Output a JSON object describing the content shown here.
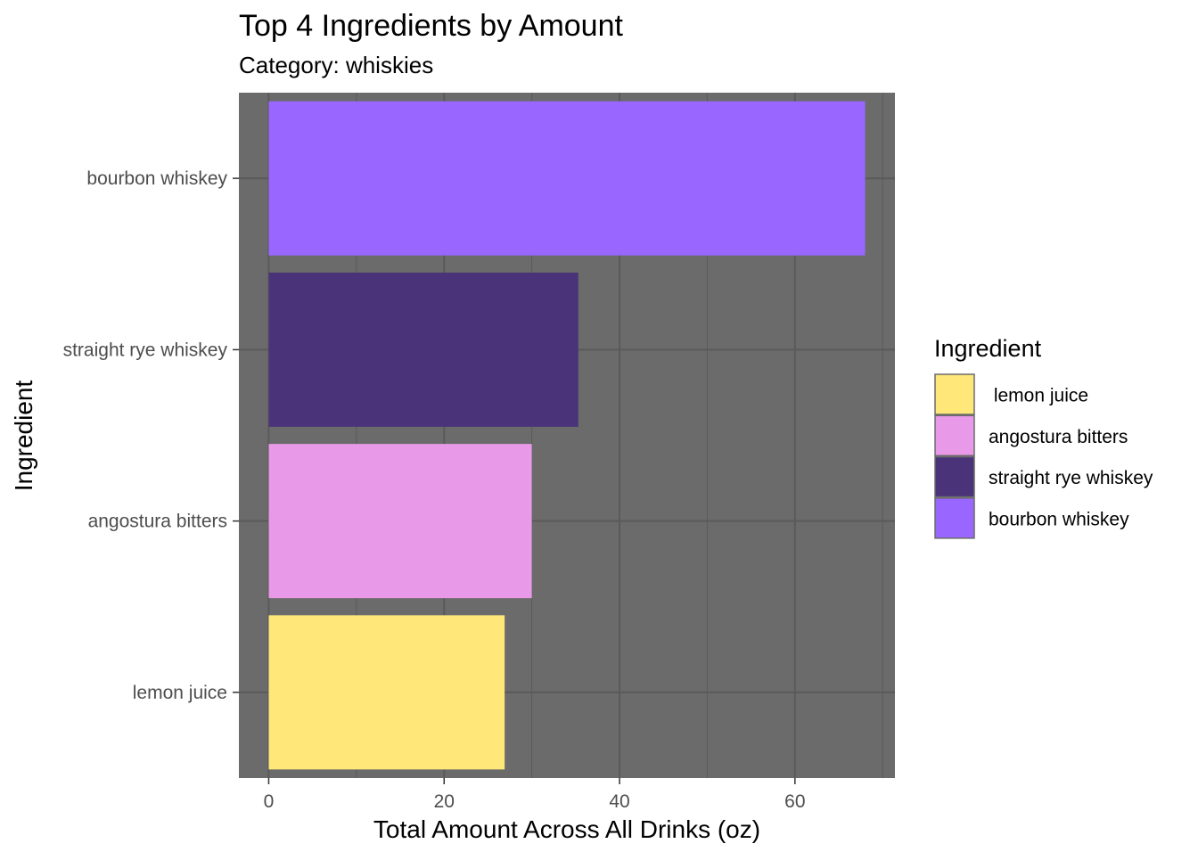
{
  "chart_data": {
    "type": "bar",
    "orientation": "horizontal",
    "title": "Top 4 Ingredients by Amount",
    "subtitle": "Category: whiskies",
    "xlabel": "Total Amount Across All Drinks (oz)",
    "ylabel": "Ingredient",
    "categories": [
      "lemon juice",
      "angostura bitters",
      "straight rye whiskey",
      "bourbon whiskey"
    ],
    "values": [
      26.9,
      30.0,
      35.3,
      68.0
    ],
    "colors": [
      "#FFE77A",
      "#E89AE8",
      "#4A3378",
      "#9966FF"
    ],
    "xlim": [
      -3.4,
      71.4
    ],
    "x_ticks": [
      0,
      20,
      40,
      60
    ],
    "x_tick_labels": [
      "0",
      "20",
      "40",
      "60"
    ],
    "grid": true,
    "panel_background": "#6B6B6B",
    "grid_color": "#5A5A5A",
    "legend": {
      "title": "Ingredient",
      "position": "right",
      "entries": [
        " lemon juice",
        "angostura bitters",
        "straight rye whiskey",
        "bourbon whiskey"
      ]
    }
  }
}
